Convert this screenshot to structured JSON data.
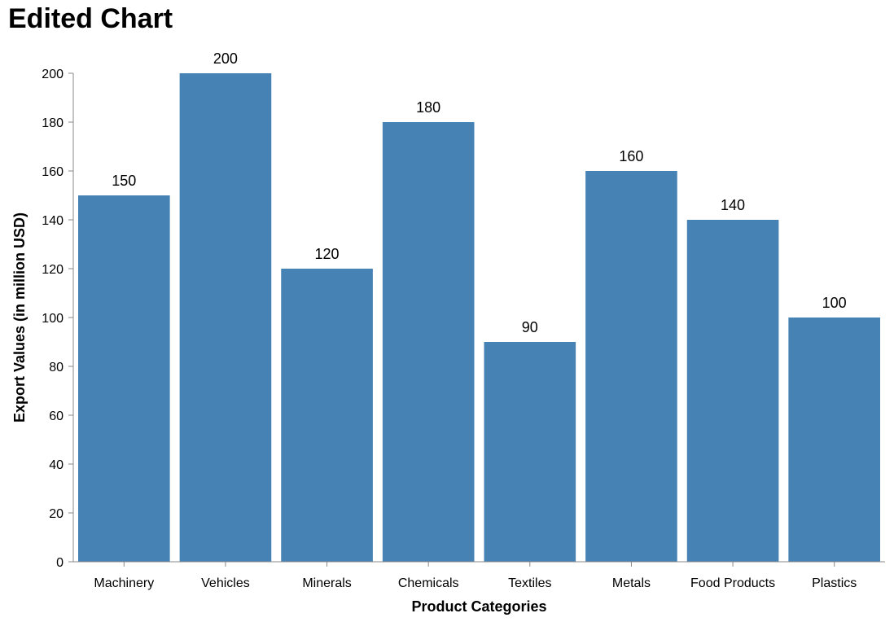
{
  "chart_data": {
    "type": "bar",
    "title": "Edited Chart",
    "xlabel": "Product Categories",
    "ylabel": "Export Values (in million USD)",
    "categories": [
      "Machinery",
      "Vehicles",
      "Minerals",
      "Chemicals",
      "Textiles",
      "Metals",
      "Food Products",
      "Plastics"
    ],
    "values": [
      150,
      200,
      120,
      180,
      90,
      160,
      140,
      100
    ],
    "ylim": [
      0,
      200
    ],
    "yticks": [
      0,
      20,
      40,
      60,
      80,
      100,
      120,
      140,
      160,
      180,
      200
    ],
    "grid": false,
    "bar_color": "#4682b4",
    "axis_color": "#888888"
  }
}
